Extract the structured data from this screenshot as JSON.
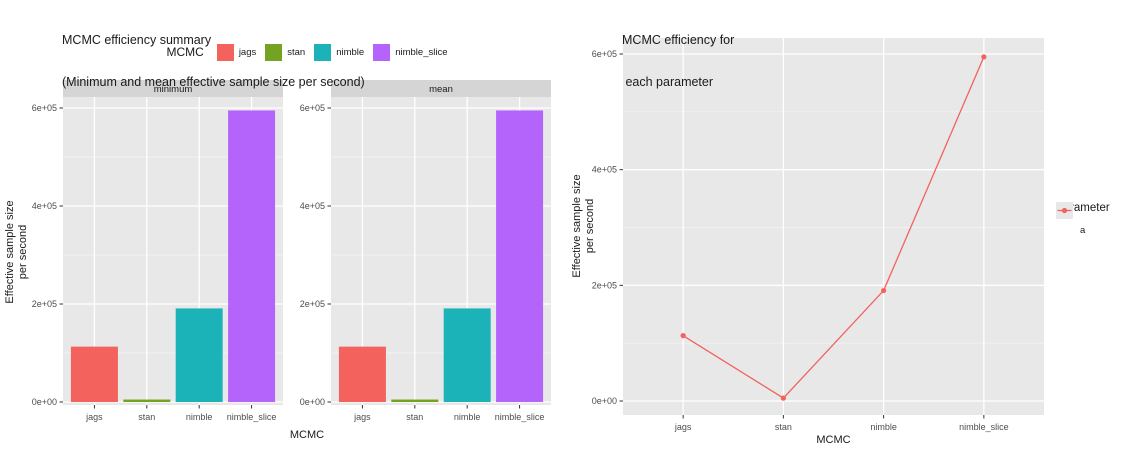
{
  "left_chart": {
    "title_line1": "MCMC efficiency summary",
    "title_line2": "(Minimum and mean effective sample size per second)",
    "legend_title": "MCMC",
    "x_title": "MCMC",
    "y_title_line1": "Effective sample size",
    "y_title_line2": "per second"
  },
  "right_chart": {
    "title_line1": "MCMC efficiency for",
    "title_line2": " each parameter",
    "legend_title": "Parameter",
    "x_title": "MCMC",
    "y_title_line1": "Effective sample size",
    "y_title_line2": "per second"
  },
  "colors": {
    "jags": "#F3625D",
    "stan": "#73A321",
    "nimble": "#1CB3B8",
    "nimble_slice": "#B463FB",
    "line_series": "#F3625D",
    "panel_bg": "#E8E8E8",
    "strip_bg": "#D5D5D5",
    "grid": "#FFFFFF",
    "tick_text": "#4D4D4D",
    "tick_mark": "#333333",
    "legend_key_bg": "#E8E8E8"
  },
  "chart_data": [
    {
      "type": "bar",
      "title": "MCMC efficiency summary (Minimum and mean effective sample size per second)",
      "facets": [
        "minimum",
        "mean"
      ],
      "categories": [
        "jags",
        "stan",
        "nimble",
        "nimble_slice"
      ],
      "series": [
        {
          "name": "minimum",
          "values": [
            113000,
            5000,
            191000,
            595000
          ]
        },
        {
          "name": "mean",
          "values": [
            113000,
            5000,
            191000,
            595000
          ]
        }
      ],
      "bar_colors": [
        "#F3625D",
        "#73A321",
        "#1CB3B8",
        "#B463FB"
      ],
      "xlabel": "MCMC",
      "ylabel": "Effective sample size per second",
      "ylim": [
        0,
        630000
      ],
      "yticks": [
        {
          "value": 0,
          "label": "0e+00"
        },
        {
          "value": 200000,
          "label": "2e+05"
        },
        {
          "value": 400000,
          "label": "4e+05"
        },
        {
          "value": 600000,
          "label": "6e+05"
        }
      ],
      "legend_title": "MCMC",
      "legend_position": "top",
      "grid": true
    },
    {
      "type": "line",
      "title": "MCMC efficiency for each parameter",
      "categories": [
        "jags",
        "stan",
        "nimble",
        "nimble_slice"
      ],
      "series": [
        {
          "name": "a",
          "values": [
            113000,
            5000,
            191000,
            595000
          ]
        }
      ],
      "xlabel": "MCMC",
      "ylabel": "Effective sample size per second",
      "ylim": [
        0,
        640000
      ],
      "yticks": [
        {
          "value": 0,
          "label": "0e+00"
        },
        {
          "value": 200000,
          "label": "2e+05"
        },
        {
          "value": 400000,
          "label": "4e+05"
        },
        {
          "value": 600000,
          "label": "6e+05"
        }
      ],
      "legend_title": "Parameter",
      "legend_position": "right",
      "grid": true
    }
  ]
}
